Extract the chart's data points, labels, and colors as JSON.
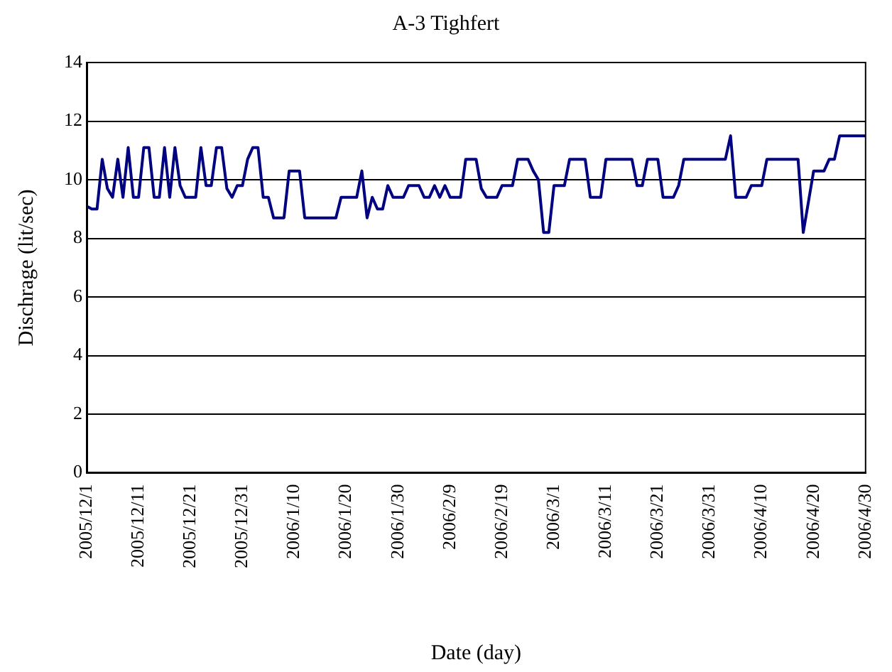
{
  "chart_data": {
    "type": "line",
    "title": "A-3 Tighfert",
    "xlabel": "Date (day)",
    "ylabel": "Dischrage (lit/sec)",
    "x": [
      "2005-12-01",
      "2005-12-02",
      "2005-12-03",
      "2005-12-04",
      "2005-12-05",
      "2005-12-06",
      "2005-12-07",
      "2005-12-08",
      "2005-12-09",
      "2005-12-10",
      "2005-12-11",
      "2005-12-12",
      "2005-12-13",
      "2005-12-14",
      "2005-12-15",
      "2005-12-16",
      "2005-12-17",
      "2005-12-18",
      "2005-12-19",
      "2005-12-20",
      "2005-12-21",
      "2005-12-22",
      "2005-12-23",
      "2005-12-24",
      "2005-12-25",
      "2005-12-26",
      "2005-12-27",
      "2005-12-28",
      "2005-12-29",
      "2005-12-30",
      "2005-12-31",
      "2006-01-01",
      "2006-01-02",
      "2006-01-03",
      "2006-01-04",
      "2006-01-05",
      "2006-01-06",
      "2006-01-08",
      "2006-01-09",
      "2006-01-11",
      "2006-01-12",
      "2006-01-18",
      "2006-01-19",
      "2006-01-22",
      "2006-01-23",
      "2006-01-24",
      "2006-01-25",
      "2006-01-26",
      "2006-01-27",
      "2006-01-28",
      "2006-01-29",
      "2006-01-31",
      "2006-02-01",
      "2006-02-03",
      "2006-02-04",
      "2006-02-05",
      "2006-02-06",
      "2006-02-07",
      "2006-02-08",
      "2006-02-09",
      "2006-02-11",
      "2006-02-12",
      "2006-02-14",
      "2006-02-15",
      "2006-02-16",
      "2006-02-18",
      "2006-02-19",
      "2006-02-21",
      "2006-02-22",
      "2006-02-24",
      "2006-02-25",
      "2006-02-26",
      "2006-02-27",
      "2006-02-28",
      "2006-03-01",
      "2006-03-03",
      "2006-03-04",
      "2006-03-07",
      "2006-03-08",
      "2006-03-10",
      "2006-03-11",
      "2006-03-16",
      "2006-03-17",
      "2006-03-18",
      "2006-03-19",
      "2006-03-21",
      "2006-03-22",
      "2006-03-24",
      "2006-03-25",
      "2006-03-26",
      "2006-04-03",
      "2006-04-04",
      "2006-04-05",
      "2006-04-07",
      "2006-04-08",
      "2006-04-10",
      "2006-04-11",
      "2006-04-17",
      "2006-04-18",
      "2006-04-20",
      "2006-04-22",
      "2006-04-23",
      "2006-04-24",
      "2006-04-25",
      "2006-04-30"
    ],
    "series": [
      {
        "color": "#000080",
        "values": [
          9.1,
          9.0,
          9.0,
          10.7,
          9.7,
          9.4,
          10.7,
          9.4,
          11.1,
          9.4,
          9.4,
          11.1,
          11.1,
          9.4,
          9.4,
          11.1,
          9.4,
          11.1,
          9.8,
          9.4,
          9.4,
          9.4,
          11.1,
          9.8,
          9.8,
          11.1,
          11.1,
          9.7,
          9.4,
          9.8,
          9.8,
          10.7,
          11.1,
          11.1,
          9.4,
          9.4,
          8.7,
          8.7,
          10.3,
          10.3,
          8.7,
          8.7,
          9.4,
          9.4,
          10.3,
          8.7,
          9.4,
          9.0,
          9.0,
          9.8,
          9.4,
          9.4,
          9.8,
          9.8,
          9.4,
          9.4,
          9.8,
          9.4,
          9.8,
          9.4,
          9.4,
          10.7,
          10.7,
          9.7,
          9.4,
          9.4,
          9.8,
          9.8,
          10.7,
          10.7,
          10.3,
          10.0,
          8.2,
          8.2,
          9.8,
          9.8,
          10.7,
          10.7,
          9.4,
          9.4,
          10.7,
          10.7,
          9.8,
          9.8,
          10.7,
          10.7,
          9.4,
          9.4,
          9.8,
          10.7,
          10.7,
          11.5,
          9.4,
          9.4,
          9.8,
          9.8,
          10.7,
          10.7,
          8.2,
          10.3,
          10.3,
          10.7,
          10.7,
          11.5,
          11.5
        ]
      }
    ],
    "xlim": [
      "2005-12-01",
      "2006-04-30"
    ],
    "xticks": [
      {
        "value": "2005-12-01",
        "label": "2005/12/1"
      },
      {
        "value": "2005-12-11",
        "label": "2005/12/11"
      },
      {
        "value": "2005-12-21",
        "label": "2005/12/21"
      },
      {
        "value": "2005-12-31",
        "label": "2005/12/31"
      },
      {
        "value": "2006-01-10",
        "label": "2006/1/10"
      },
      {
        "value": "2006-01-20",
        "label": "2006/1/20"
      },
      {
        "value": "2006-01-30",
        "label": "2006/1/30"
      },
      {
        "value": "2006-02-09",
        "label": "2006/2/9"
      },
      {
        "value": "2006-02-19",
        "label": "2006/2/19"
      },
      {
        "value": "2006-03-01",
        "label": "2006/3/1"
      },
      {
        "value": "2006-03-11",
        "label": "2006/3/11"
      },
      {
        "value": "2006-03-21",
        "label": "2006/3/21"
      },
      {
        "value": "2006-03-31",
        "label": "2006/3/31"
      },
      {
        "value": "2006-04-10",
        "label": "2006/4/10"
      },
      {
        "value": "2006-04-20",
        "label": "2006/4/20"
      },
      {
        "value": "2006-04-30",
        "label": "2006/4/30"
      }
    ],
    "ylim": [
      0,
      14
    ],
    "yticks": [
      0,
      2,
      4,
      6,
      8,
      10,
      12,
      14
    ],
    "grid": "y",
    "legend": false,
    "marker": "none",
    "line_style": "solid"
  }
}
